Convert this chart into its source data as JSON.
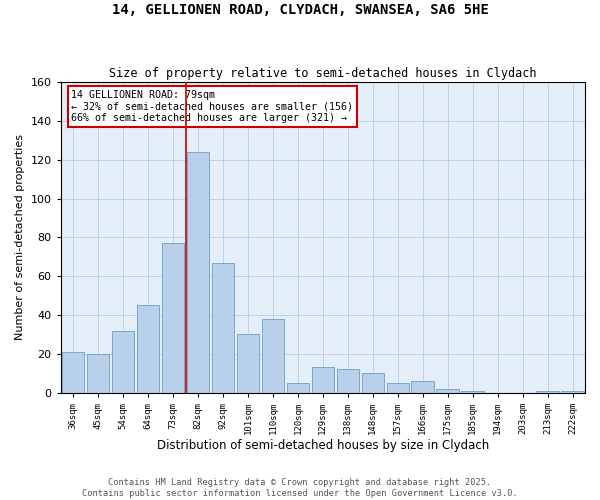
{
  "title_line1": "14, GELLIONEN ROAD, CLYDACH, SWANSEA, SA6 5HE",
  "title_line2": "Size of property relative to semi-detached houses in Clydach",
  "xlabel": "Distribution of semi-detached houses by size in Clydach",
  "ylabel": "Number of semi-detached properties",
  "categories": [
    "36sqm",
    "45sqm",
    "54sqm",
    "64sqm",
    "73sqm",
    "82sqm",
    "92sqm",
    "101sqm",
    "110sqm",
    "120sqm",
    "129sqm",
    "138sqm",
    "148sqm",
    "157sqm",
    "166sqm",
    "175sqm",
    "185sqm",
    "194sqm",
    "203sqm",
    "213sqm",
    "222sqm"
  ],
  "values": [
    21,
    20,
    32,
    45,
    77,
    124,
    67,
    30,
    38,
    5,
    13,
    12,
    10,
    5,
    6,
    2,
    1,
    0,
    0,
    1,
    1
  ],
  "bar_color": "#b8d0ea",
  "bar_edge_color": "#6a9fc8",
  "annotation_title": "14 GELLIONEN ROAD: 79sqm",
  "annotation_line2": "← 32% of semi-detached houses are smaller (156)",
  "annotation_line3": "66% of semi-detached houses are larger (321) →",
  "annotation_box_color": "#ffffff",
  "annotation_box_edge": "#cc0000",
  "vline_color": "#cc0000",
  "grid_color": "#c0d0e4",
  "bg_color": "#e4eef8",
  "footer_line1": "Contains HM Land Registry data © Crown copyright and database right 2025.",
  "footer_line2": "Contains public sector information licensed under the Open Government Licence v3.0.",
  "ylim": [
    0,
    160
  ],
  "yticks": [
    0,
    20,
    40,
    60,
    80,
    100,
    120,
    140,
    160
  ],
  "vline_bar_idx": 4.5
}
